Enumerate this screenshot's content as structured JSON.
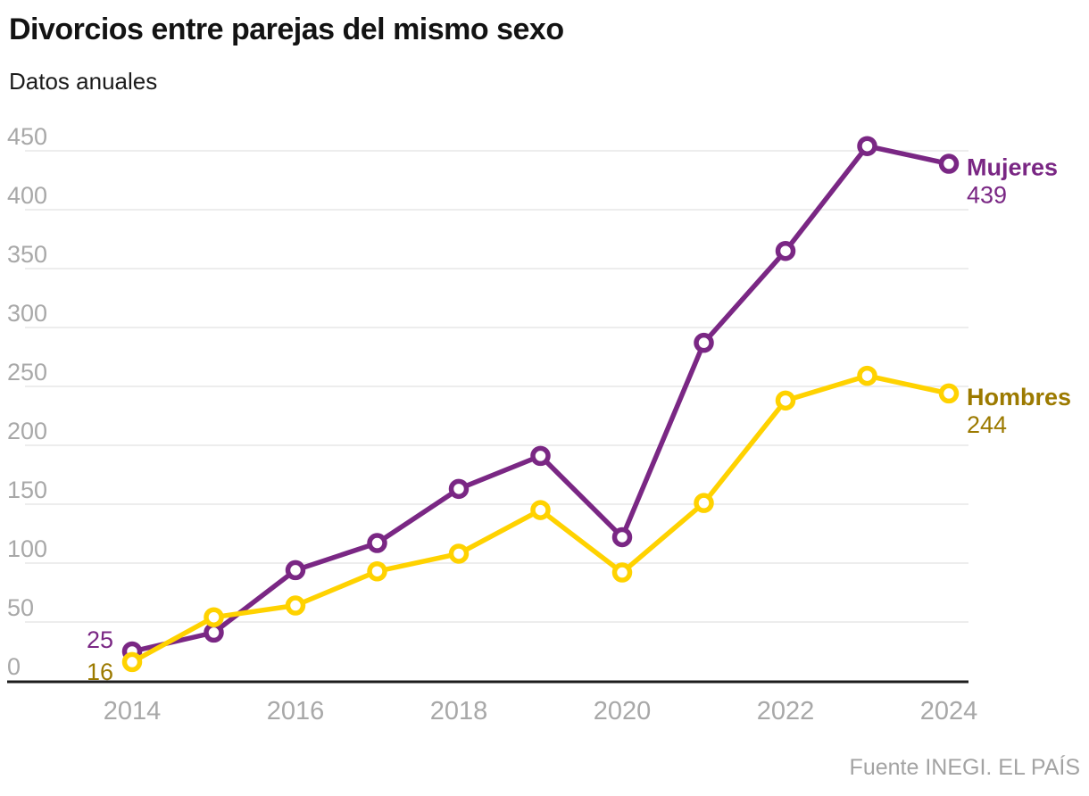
{
  "header": {
    "title": "Divorcios entre parejas del mismo sexo",
    "subtitle": "Datos anuales"
  },
  "footer": {
    "source": "Fuente INEGI. EL PAÍS"
  },
  "chart_data": {
    "type": "line",
    "title": "Divorcios entre parejas del mismo sexo",
    "subtitle": "Datos anuales",
    "source": "Fuente INEGI. EL PAÍS",
    "x": [
      2014,
      2015,
      2016,
      2017,
      2018,
      2019,
      2020,
      2021,
      2022,
      2023,
      2024
    ],
    "series": [
      {
        "name": "Mujeres",
        "color": "#7a2784",
        "label_color": "#7a2784",
        "values": [
          25,
          41,
          94,
          117,
          163,
          191,
          122,
          287,
          365,
          454,
          439
        ],
        "first_value_label": "25",
        "end_name_label": "Mujeres",
        "end_value_label": "439"
      },
      {
        "name": "Hombres",
        "color": "#ffd200",
        "label_color": "#9c7a00",
        "values": [
          16,
          54,
          64,
          93,
          108,
          145,
          92,
          151,
          238,
          259,
          244
        ],
        "first_value_label": "16",
        "end_name_label": "Hombres",
        "end_value_label": "244"
      }
    ],
    "yticks": [
      0,
      50,
      100,
      150,
      200,
      250,
      300,
      350,
      400,
      450
    ],
    "xticks": [
      2014,
      2016,
      2018,
      2020,
      2022,
      2024
    ],
    "ylim": [
      0,
      450
    ],
    "xlim": [
      2013,
      2024.3
    ],
    "grid": true,
    "legend_position": "right-end-of-lines",
    "colors": {
      "grid": "#e7e7e7",
      "axis": "#1d1d1d",
      "tick_text": "#a8a8a8",
      "marker_fill": "#ffffff"
    }
  }
}
